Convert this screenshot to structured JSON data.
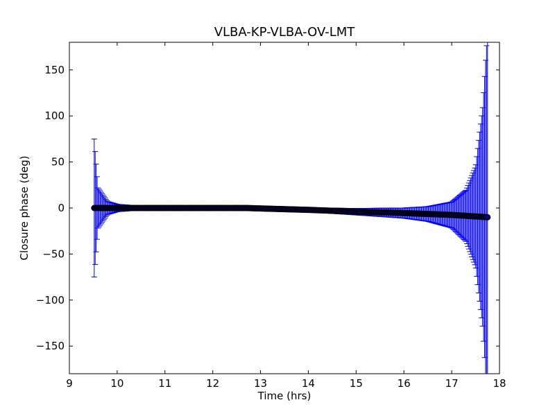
{
  "chart_data": {
    "type": "scatter",
    "title": "VLBA-KP-VLBA-OV-LMT",
    "xlabel": "Time (hrs)",
    "ylabel": "Closure phase (deg)",
    "xlim": [
      9,
      18
    ],
    "ylim": [
      -180,
      180
    ],
    "xticks": [
      9,
      10,
      11,
      12,
      13,
      14,
      15,
      16,
      17,
      18
    ],
    "yticks": [
      -150,
      -100,
      -50,
      0,
      50,
      100,
      150
    ],
    "xtick_labels": [
      "9",
      "10",
      "11",
      "12",
      "13",
      "14",
      "15",
      "16",
      "17",
      "18"
    ],
    "ytick_labels": [
      "−150",
      "−100",
      "−50",
      "0",
      "50",
      "100",
      "150"
    ],
    "grid": false,
    "colors": {
      "errorbar": "#0000ff",
      "marker": "#000000",
      "marker_fill": "#000080",
      "axes": "#000000"
    },
    "series": [
      {
        "t_start": 9.52,
        "t_end": 17.75,
        "n_points": 400,
        "phase_trend": [
          [
            9.52,
            0.0
          ],
          [
            10.0,
            0.0
          ],
          [
            11.0,
            0.0
          ],
          [
            12.0,
            0.0
          ],
          [
            12.7,
            0.0
          ],
          [
            13.0,
            -0.5
          ],
          [
            14.0,
            -2.0
          ],
          [
            15.0,
            -4.0
          ],
          [
            16.0,
            -5.5
          ],
          [
            17.0,
            -7.5
          ],
          [
            17.75,
            -10.0
          ]
        ],
        "error_trend": [
          [
            9.52,
            75
          ],
          [
            9.6,
            22
          ],
          [
            9.8,
            7
          ],
          [
            10.0,
            4
          ],
          [
            10.5,
            2
          ],
          [
            11.0,
            1.5
          ],
          [
            12.0,
            1.2
          ],
          [
            13.0,
            1.5
          ],
          [
            14.0,
            2.2
          ],
          [
            15.0,
            3.5
          ],
          [
            16.0,
            5.5
          ],
          [
            16.5,
            8
          ],
          [
            17.0,
            14
          ],
          [
            17.3,
            28
          ],
          [
            17.5,
            55
          ],
          [
            17.65,
            120
          ],
          [
            17.72,
            180
          ],
          [
            17.75,
            200
          ]
        ]
      }
    ]
  }
}
